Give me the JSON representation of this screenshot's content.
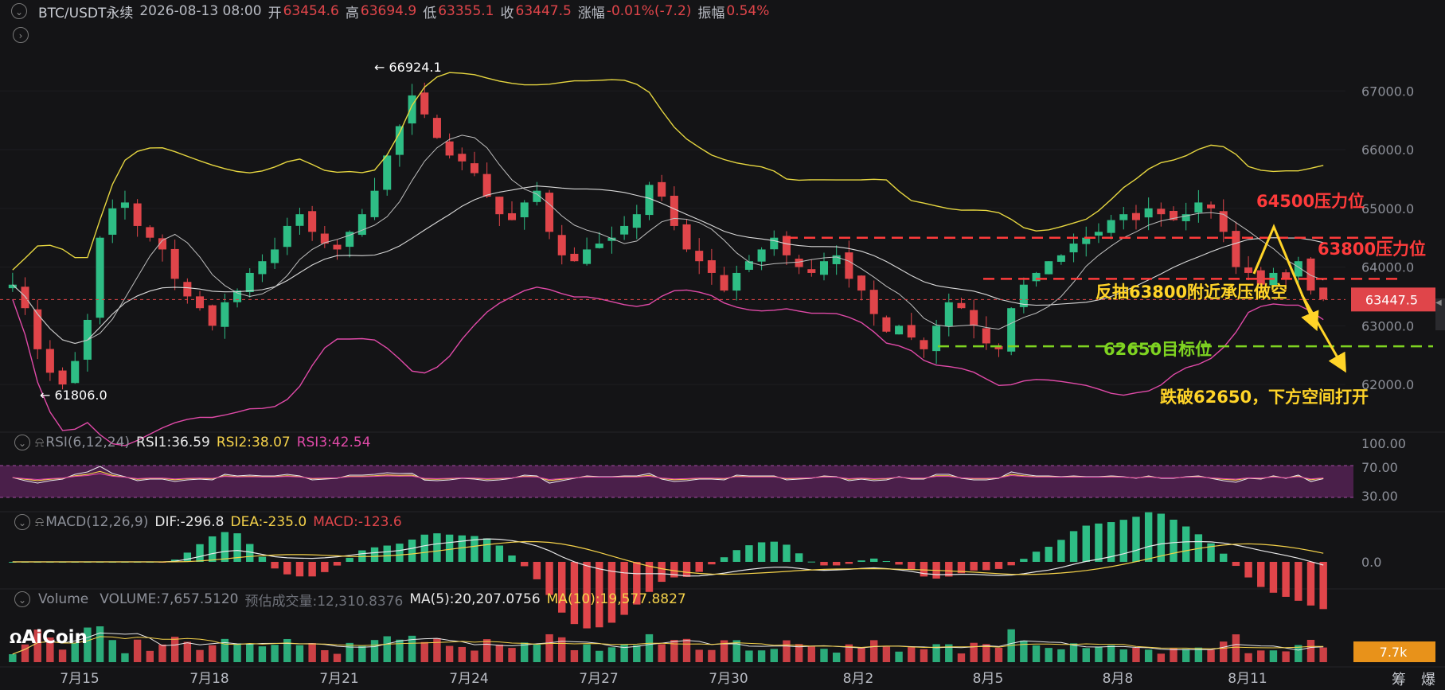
{
  "header": {
    "symbol": "BTC/USDT永续",
    "datetime": "2026-08-13 08:00",
    "open_label": "开",
    "open": "63454.6",
    "high_label": "高",
    "high": "63694.9",
    "low_label": "低",
    "low": "63355.1",
    "close_label": "收",
    "close": "63447.5",
    "change_label": "涨幅",
    "change": "-0.01%(-7.2)",
    "amp_label": "振幅",
    "amp": "0.54%"
  },
  "rsi": {
    "title": "RSI(6,12,24)",
    "rsi1": "RSI1:36.59",
    "rsi2": "RSI2:38.07",
    "rsi3": "RSI3:42.54"
  },
  "macd": {
    "title": "MACD(12,26,9)",
    "dif": "DIF:-296.8",
    "dea": "DEA:-235.0",
    "macd": "MACD:-123.6"
  },
  "volume": {
    "title": "Volume",
    "vol": "VOLUME:7,657.5120",
    "est": "预估成交量:12,310.8376",
    "ma5": "MA(5):20,207.0756",
    "ma10": "MA(10):19,577.8827",
    "badge": "7.7k"
  },
  "logo": "AiCoin",
  "corner_labels": [
    "筹",
    "爆"
  ],
  "colors": {
    "up": "#2ebd85",
    "down": "#e0454a",
    "boll_upper": "#e6d640",
    "boll_lower": "#e04aa8",
    "ma": "#d9d9d9",
    "annotation_red": "#ff3b3b",
    "annotation_yellow": "#ffd428",
    "annotation_green": "#7ed321"
  },
  "chart_data": {
    "type": "candlestick",
    "price_axis": {
      "ticks": [
        "67000.0",
        "66000.0",
        "65000.0",
        "64000.0",
        "63000.0",
        "62000.0"
      ],
      "ylim": [
        61500,
        67600
      ]
    },
    "x_axis_labels": [
      "7月15",
      "7月18",
      "7月21",
      "7月24",
      "7月27",
      "7月30",
      "8月2",
      "8月5",
      "8月8",
      "8月11"
    ],
    "current_price": "63447.5",
    "extremes": {
      "high": "← 66924.1",
      "low": "← 61806.0"
    },
    "price_path": [
      [
        63700,
        63300,
        62600,
        62200,
        62000,
        62400,
        63100,
        64500,
        65000,
        65100,
        64700,
        64500,
        64300,
        63800,
        63500,
        63300,
        63000,
        63400,
        63600,
        63900
      ],
      [
        64100,
        64300,
        64700,
        64900,
        64600,
        64400,
        64300,
        64600,
        64900,
        65300,
        65900,
        66400,
        66924,
        66600,
        66200,
        65900,
        65800,
        65600,
        65200,
        64900
      ],
      [
        64800,
        65100,
        65300,
        64600,
        64200,
        64100,
        64300,
        64400,
        64500,
        64700,
        64900,
        65400,
        65200,
        64700,
        64300,
        64100,
        63900,
        63600,
        63900,
        64100
      ],
      [
        64300,
        64500,
        64200,
        64000,
        63900,
        64100,
        64200,
        63800,
        63600,
        63200,
        62900,
        63000,
        62800,
        62600,
        63000,
        63400,
        63300,
        63000,
        62700,
        62600
      ],
      [
        63300,
        63700,
        63900,
        64100,
        64200,
        64400,
        64500,
        64600,
        64800,
        64900,
        64800,
        65000,
        64900,
        64800,
        64900,
        65100,
        65000,
        64600,
        64000,
        63900
      ],
      [
        63700,
        63900,
        63800,
        64100,
        63600,
        63450
      ]
    ],
    "bollinger": {
      "upper_color": "#e6d640",
      "lower_color": "#e04aa8"
    },
    "annotations": {
      "res1": "64500压力位",
      "res2": "63800压力位",
      "plan": "反抽63800附近承压做空",
      "target": "62650目标位",
      "break": "跌破62650，下方空间打开"
    },
    "levels": [
      64500,
      63800,
      62650
    ],
    "rsi_axis": [
      "100.00",
      "70.00",
      "30.00"
    ],
    "macd_axis": [
      "0.0"
    ],
    "rsi_series": {
      "rsi1": 36.59,
      "rsi2": 38.07,
      "rsi3": 42.54
    }
  }
}
